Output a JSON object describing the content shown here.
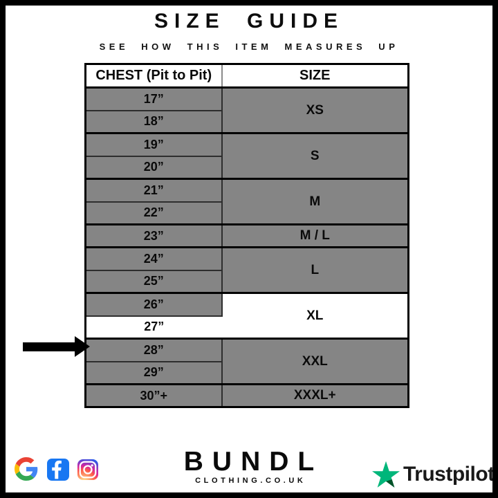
{
  "title": "SIZE GUIDE",
  "subtitle": "SEE HOW THIS ITEM MEASURES UP",
  "size_table": {
    "headers": {
      "chest": "CHEST (Pit to Pit)",
      "size": "SIZE"
    },
    "groups": [
      {
        "size": "XS",
        "size_highlighted": false,
        "rows": [
          {
            "chest": "17”",
            "highlighted": false
          },
          {
            "chest": "18”",
            "highlighted": false
          }
        ]
      },
      {
        "size": "S",
        "size_highlighted": false,
        "rows": [
          {
            "chest": "19”",
            "highlighted": false
          },
          {
            "chest": "20”",
            "highlighted": false
          }
        ]
      },
      {
        "size": "M",
        "size_highlighted": false,
        "rows": [
          {
            "chest": "21”",
            "highlighted": false
          },
          {
            "chest": "22”",
            "highlighted": false
          }
        ]
      },
      {
        "size": "M / L",
        "size_highlighted": false,
        "rows": [
          {
            "chest": "23”",
            "highlighted": false
          }
        ]
      },
      {
        "size": "L",
        "size_highlighted": false,
        "rows": [
          {
            "chest": "24”",
            "highlighted": false
          },
          {
            "chest": "25”",
            "highlighted": false
          }
        ]
      },
      {
        "size": "XL",
        "size_highlighted": true,
        "rows": [
          {
            "chest": "26”",
            "highlighted": false
          },
          {
            "chest": "27”",
            "highlighted": true
          }
        ]
      },
      {
        "size": "XXL",
        "size_highlighted": false,
        "rows": [
          {
            "chest": "28”",
            "highlighted": false
          },
          {
            "chest": "29”",
            "highlighted": false
          }
        ]
      },
      {
        "size": "XXXL+",
        "size_highlighted": false,
        "rows": [
          {
            "chest": "30”+",
            "highlighted": false
          }
        ]
      }
    ],
    "arrow_points_to_chest": "27”"
  },
  "footer": {
    "social_icons": [
      "google-icon",
      "facebook-icon",
      "instagram-icon"
    ],
    "brand": {
      "name": "BUNDL",
      "domain": "CLOTHING.CO.UK"
    },
    "trustpilot": {
      "label": "Trustpilot",
      "icon": "trustpilot-star-icon"
    }
  },
  "colors": {
    "row_gray": "#858585",
    "highlight_white": "#ffffff",
    "table_border": "#000000",
    "facebook_blue": "#1877F2",
    "instagram_gradient": [
      "#fdf497",
      "#fd5949",
      "#d6249f",
      "#285AEB"
    ],
    "trustpilot_green": "#00B67A",
    "trustpilot_dark_green": "#005128",
    "google_red": "#EA4335",
    "google_blue": "#4285F4",
    "google_yellow": "#FBBC05",
    "google_green": "#34A853"
  }
}
